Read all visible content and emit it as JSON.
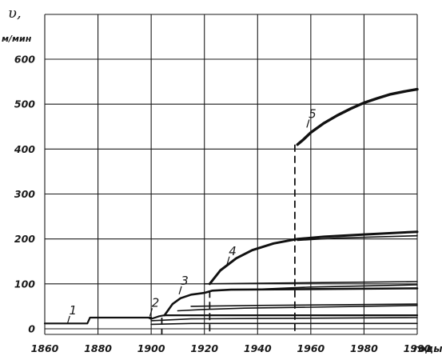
{
  "chart_data": {
    "type": "line",
    "ylabel": "υ,",
    "yunit": "м/мин",
    "xunit": "годы",
    "xlim": [
      1860,
      2000
    ],
    "ylim": [
      0,
      650
    ],
    "xticks": [
      1860,
      1880,
      1900,
      1920,
      1940,
      1960,
      1980,
      1990
    ],
    "yticks": [
      0,
      100,
      200,
      300,
      400,
      500,
      600
    ],
    "grid": true,
    "series": [
      {
        "name": "1",
        "points": [
          [
            1860,
            12
          ],
          [
            1876,
            12
          ],
          [
            1877,
            25
          ],
          [
            1900,
            25
          ]
        ]
      },
      {
        "name": "2",
        "points": [
          [
            1899,
            25
          ],
          [
            1900,
            22
          ],
          [
            1901,
            24
          ],
          [
            1903,
            28
          ],
          [
            1905,
            30
          ],
          [
            2000,
            30
          ]
        ]
      },
      {
        "name": "3",
        "points": [
          [
            1905,
            30
          ],
          [
            1908,
            55
          ],
          [
            1911,
            68
          ],
          [
            1915,
            76
          ],
          [
            1920,
            80
          ],
          [
            1923,
            85
          ],
          [
            1930,
            87
          ],
          [
            2000,
            90
          ]
        ]
      },
      {
        "name": "4",
        "points": [
          [
            1922,
            100
          ],
          [
            1926,
            130
          ],
          [
            1932,
            157
          ],
          [
            1938,
            175
          ],
          [
            1946,
            190
          ],
          [
            1955,
            200
          ],
          [
            1965,
            205
          ],
          [
            1980,
            210
          ],
          [
            2000,
            216
          ]
        ]
      },
      {
        "name": "5",
        "points": [
          [
            1955,
            410
          ],
          [
            1957,
            420
          ],
          [
            1960,
            437
          ],
          [
            1965,
            458
          ],
          [
            1970,
            475
          ],
          [
            1975,
            490
          ],
          [
            1980,
            503
          ],
          [
            1985,
            513
          ],
          [
            1990,
            522
          ],
          [
            1995,
            528
          ],
          [
            2000,
            533
          ]
        ]
      }
    ],
    "extra_lines": [
      {
        "points": [
          [
            1910,
            40
          ],
          [
            1920,
            43
          ],
          [
            1935,
            46
          ],
          [
            1960,
            48
          ],
          [
            2000,
            52
          ]
        ]
      },
      {
        "points": [
          [
            1900,
            10
          ],
          [
            1915,
            12
          ],
          [
            2000,
            12
          ]
        ]
      },
      {
        "points": [
          [
            1900,
            18
          ],
          [
            1915,
            22
          ],
          [
            1940,
            23
          ],
          [
            2000,
            25
          ]
        ]
      },
      {
        "points": [
          [
            1915,
            50
          ],
          [
            1940,
            52
          ],
          [
            2000,
            55
          ]
        ]
      },
      {
        "points": [
          [
            1920,
            100
          ],
          [
            2000,
            105
          ]
        ]
      },
      {
        "points": [
          [
            1940,
            88
          ],
          [
            1960,
            93
          ],
          [
            2000,
            98
          ]
        ]
      },
      {
        "points": [
          [
            1955,
            197
          ],
          [
            1970,
            202
          ],
          [
            2000,
            207
          ]
        ]
      }
    ],
    "dashed_verticals": [
      {
        "x": 1904,
        "y": 25
      },
      {
        "x": 1922,
        "y": 85
      },
      {
        "x": 1954,
        "y": 410
      }
    ],
    "labels": [
      {
        "text": "1",
        "x": 1870,
        "y": 18
      },
      {
        "text": "2",
        "x": 1901,
        "y": 35
      },
      {
        "text": "3",
        "x": 1912,
        "y": 84
      },
      {
        "text": "4",
        "x": 1930,
        "y": 150
      },
      {
        "text": "5",
        "x": 1960,
        "y": 455
      }
    ]
  }
}
